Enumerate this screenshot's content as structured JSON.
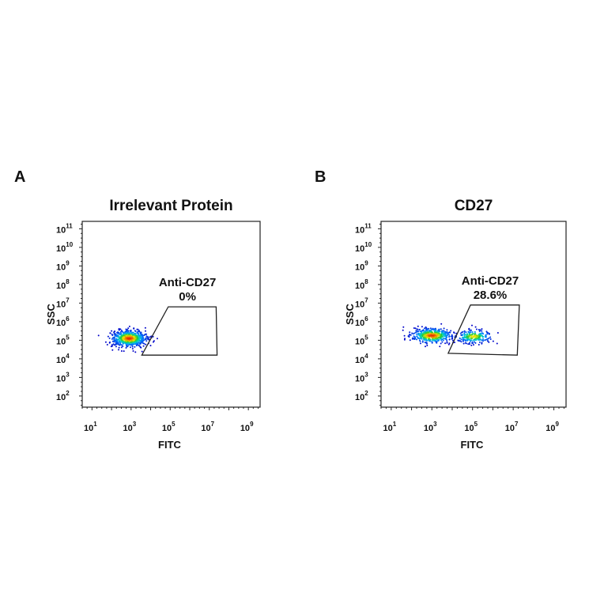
{
  "chart_data": [
    {
      "panel_label": "A",
      "type": "scatter",
      "title": "Irrelevant Protein",
      "xlabel": "FITC",
      "ylabel": "SSC",
      "x_scale": "log",
      "y_scale": "log",
      "xlim_log10": [
        0.5,
        9.6
      ],
      "ylim_log10": [
        1.4,
        11.4
      ],
      "x_ticks": [
        1,
        3,
        5,
        7,
        9
      ],
      "y_ticks": [
        2,
        3,
        4,
        5,
        6,
        7,
        8,
        9,
        10,
        11
      ],
      "coloring": "density (blue-green-yellow-red)",
      "populations": [
        {
          "center_log10": [
            2.9,
            5.1
          ],
          "spread_log10": [
            0.45,
            0.22
          ],
          "weight": 1.0
        }
      ],
      "gate": {
        "name": "Anti-CD27",
        "percent": "0%",
        "vertices_log10": [
          [
            3.55,
            4.2
          ],
          [
            4.9,
            6.8
          ],
          [
            7.35,
            6.8
          ],
          [
            7.4,
            4.2
          ]
        ]
      }
    },
    {
      "panel_label": "B",
      "type": "scatter",
      "title": "CD27",
      "xlabel": "FITC",
      "ylabel": "SSC",
      "x_scale": "log",
      "y_scale": "log",
      "xlim_log10": [
        0.5,
        9.6
      ],
      "ylim_log10": [
        1.4,
        11.4
      ],
      "x_ticks": [
        1,
        3,
        5,
        7,
        9
      ],
      "y_ticks": [
        2,
        3,
        4,
        5,
        6,
        7,
        8,
        9,
        10,
        11
      ],
      "coloring": "density (blue-green-yellow-red)",
      "populations": [
        {
          "center_log10": [
            3.0,
            5.25
          ],
          "spread_log10": [
            0.5,
            0.2
          ],
          "weight": 0.65
        },
        {
          "center_log10": [
            5.05,
            5.2
          ],
          "spread_log10": [
            0.45,
            0.18
          ],
          "weight": 0.35
        }
      ],
      "gate": {
        "name": "Anti-CD27",
        "percent": "28.6%",
        "vertices_log10": [
          [
            3.8,
            4.3
          ],
          [
            4.9,
            6.9
          ],
          [
            7.3,
            6.9
          ],
          [
            7.2,
            4.2
          ]
        ]
      }
    }
  ]
}
